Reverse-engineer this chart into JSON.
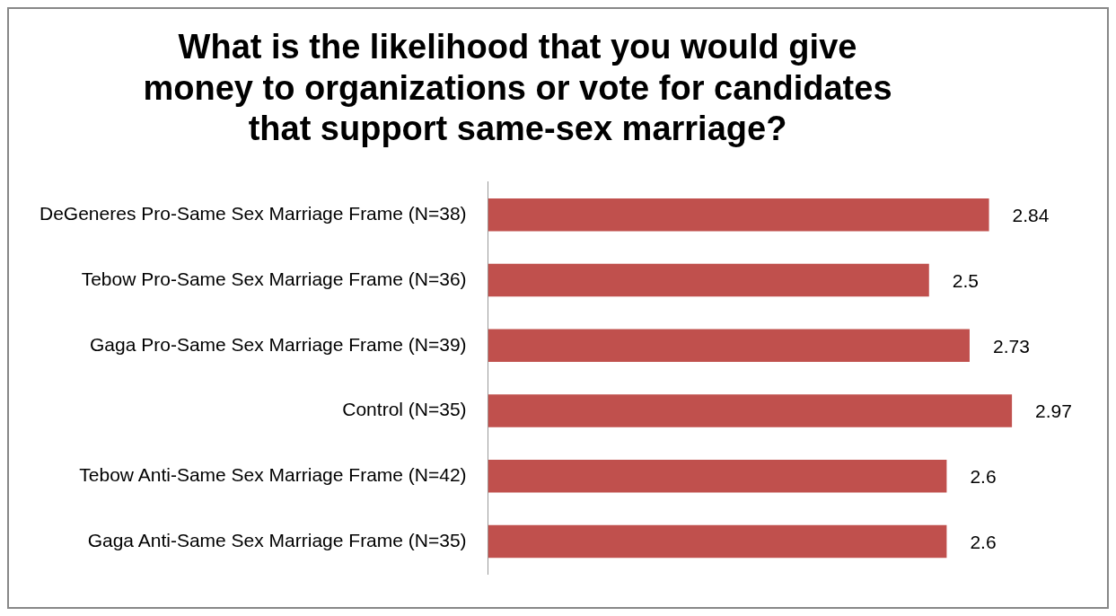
{
  "chart_data": {
    "type": "bar",
    "orientation": "horizontal",
    "title": [
      "What is the likelihood that you would give",
      "money to organizations or vote for candidates",
      "that support same-sex marriage?"
    ],
    "categories": [
      "DeGeneres Pro-Same Sex Marriage Frame (N=38)",
      "Tebow Pro-Same Sex Marriage Frame (N=36)",
      "Gaga Pro-Same Sex Marriage Frame (N=39)",
      "Control (N=35)",
      "Tebow Anti-Same Sex Marriage Frame (N=42)",
      "Gaga Anti-Same Sex Marriage Frame (N=35)"
    ],
    "values": [
      2.84,
      2.5,
      2.73,
      2.97,
      2.6,
      2.6
    ],
    "color": "#c0504d",
    "tick_labels": "y",
    "data_labels": true,
    "grid": false,
    "legend": false
  }
}
